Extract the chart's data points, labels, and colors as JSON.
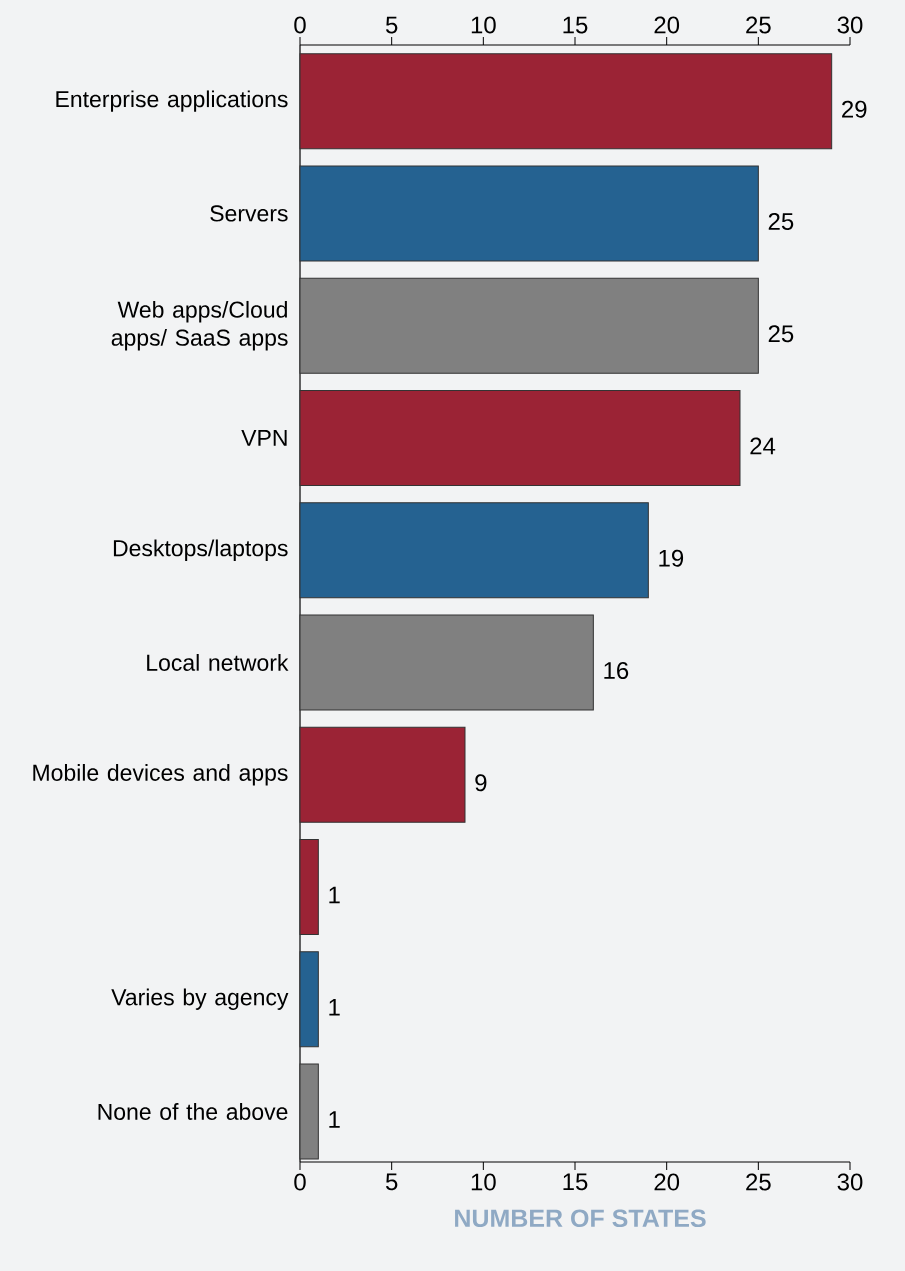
{
  "chart_data": {
    "type": "bar",
    "orientation": "horizontal",
    "xlabel": "NUMBER OF STATES",
    "categories": [
      "Enterprise applications",
      "Servers",
      "Web apps/Cloud apps/ SaaS apps",
      "VPN",
      "Desktops/laptops",
      "Local network",
      "Mobile devices and apps",
      null,
      "Varies by agency",
      "None of the above"
    ],
    "values": [
      29,
      25,
      25,
      24,
      19,
      16,
      9,
      1,
      1,
      1
    ],
    "colors": [
      "#9b2335",
      "#256291",
      "#808080",
      "#9b2335",
      "#256291",
      "#808080",
      "#9b2335",
      "#9b2335",
      "#256291",
      "#808080"
    ],
    "xlim": [
      0,
      30
    ],
    "xticks": [
      0,
      5,
      10,
      15,
      20,
      25,
      30
    ],
    "x2lim": [
      0,
      30
    ],
    "x2ticks": [
      0,
      5,
      10,
      15,
      20,
      25,
      30
    ],
    "data_labels": true,
    "grid": false
  }
}
